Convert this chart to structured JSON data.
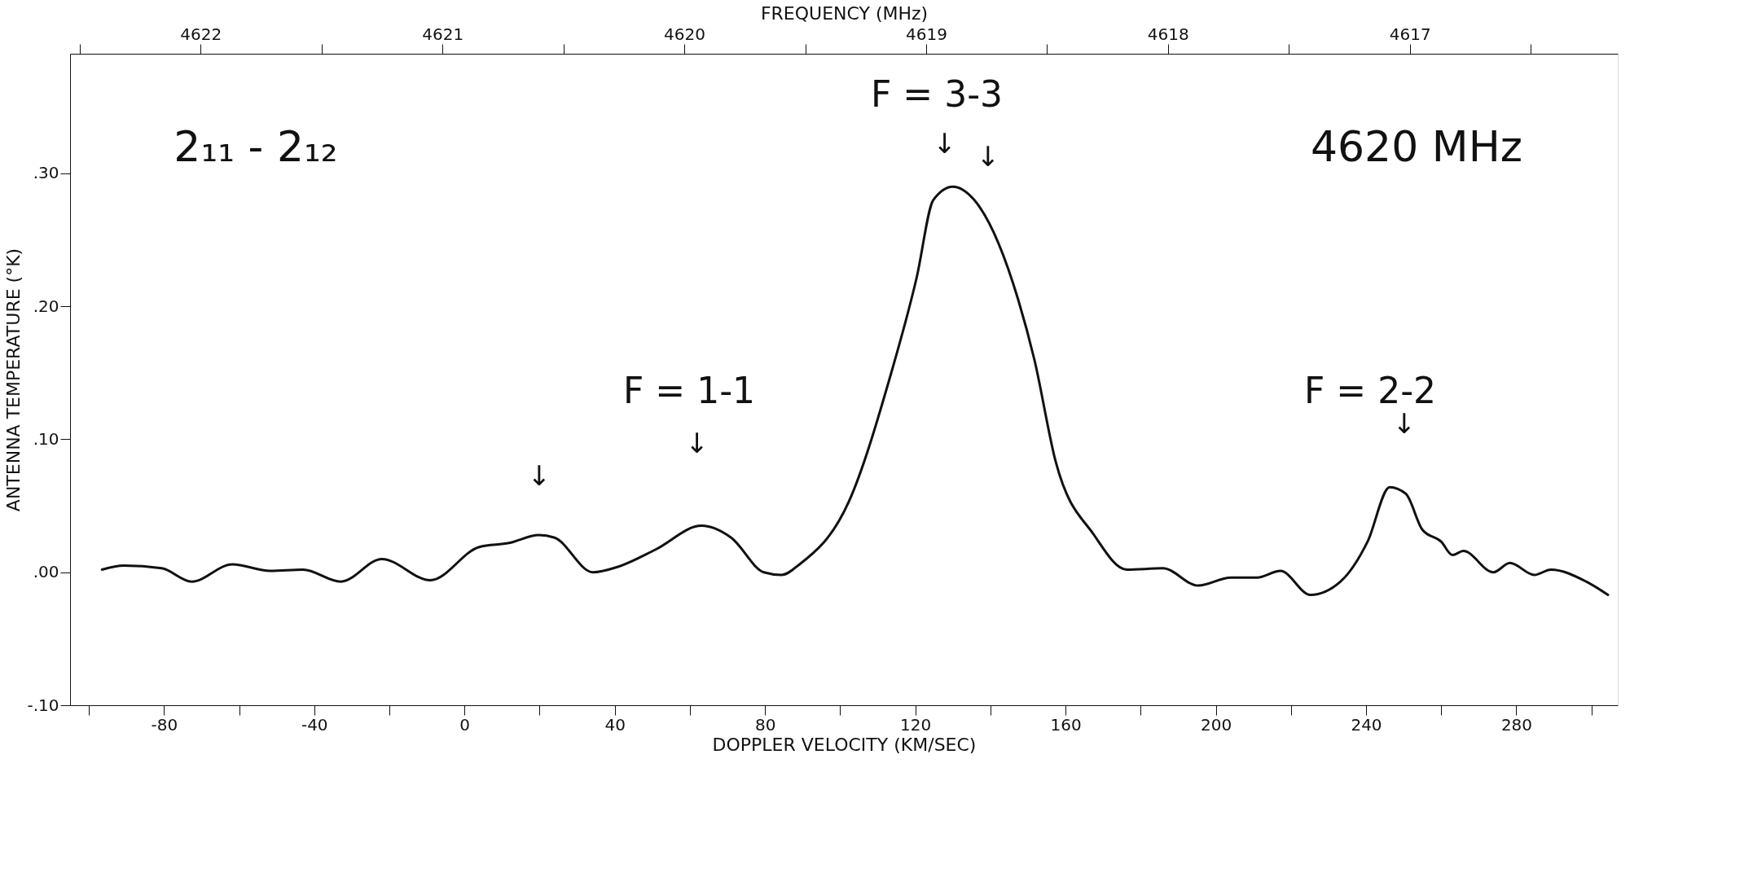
{
  "chart_data": {
    "type": "line",
    "xlabel": "DOPPLER VELOCITY (KM/SEC)",
    "ylabel": "ANTENNA TEMPERATURE (°K)",
    "x2label": "FREQUENCY (MHz)",
    "xlim": [
      -105,
      307
    ],
    "ylim": [
      -0.1,
      0.39
    ],
    "x2lim": [
      4622.54,
      4616.14
    ],
    "xticks": [
      {
        "value": -100,
        "label": null
      },
      -80,
      {
        "value": -60,
        "label": null
      },
      -40,
      {
        "value": -20,
        "label": null
      },
      0,
      {
        "value": 20,
        "label": null
      },
      40,
      {
        "value": 60,
        "label": null
      },
      80,
      {
        "value": 100,
        "label": null
      },
      120,
      {
        "value": 140,
        "label": null
      },
      160,
      {
        "value": 180,
        "label": null
      },
      200,
      {
        "value": 220,
        "label": null
      },
      240,
      {
        "value": 260,
        "label": null
      },
      280,
      {
        "value": 300,
        "label": null
      }
    ],
    "yticks": [
      {
        "value": -0.1,
        "label": "-.10"
      },
      {
        "value": 0.0,
        "label": ".00"
      },
      {
        "value": 0.1,
        "label": ".10"
      },
      {
        "value": 0.2,
        "label": ".20"
      },
      {
        "value": 0.3,
        "label": ".30"
      }
    ],
    "x2ticks": [
      {
        "value": 4622.5,
        "label": null
      },
      4622,
      {
        "value": 4621.5,
        "label": null
      },
      4621,
      {
        "value": 4620.5,
        "label": null
      },
      4620,
      {
        "value": 4619.5,
        "label": null
      },
      4619,
      {
        "value": 4618.5,
        "label": null
      },
      4618,
      {
        "value": 4617.5,
        "label": null
      },
      4617,
      {
        "value": 4616.5,
        "label": null
      }
    ],
    "grid": false,
    "marker": "none",
    "line_style": "solid",
    "series": [
      {
        "color": "#111111",
        "x": [
          -96.5,
          -90.7,
          -80.6,
          -72.6,
          -61.8,
          -51.7,
          -43,
          -32.9,
          -22,
          -9.1,
          3.9,
          11.8,
          19.8,
          24,
          34.2,
          40.7,
          50.8,
          63.1,
          71,
          79.7,
          84.4,
          89.2,
          102.3,
          113.3,
          120.4,
          124.8,
          130,
          135.7,
          147.4,
          151.7,
          157.4,
          167.6,
          176.3,
          185.9,
          195.3,
          204,
          211,
          217.2,
          225.2,
          233.2,
          240.4,
          246.3,
          250.6,
          255,
          260,
          263,
          265.9,
          273.9,
          278.3,
          284.8,
          289.2,
          298.6,
          304.4
        ],
        "values": [
          0.002,
          0.005,
          0.003,
          -0.007,
          0.006,
          0.001,
          0.002,
          -0.007,
          0.01,
          -0.006,
          0.019,
          0.022,
          0.028,
          0.026,
          0.0,
          0.004,
          0.017,
          0.035,
          0.026,
          0.0,
          -0.002,
          0.006,
          0.053,
          0.147,
          0.222,
          0.28,
          0.29,
          0.28,
          0.205,
          0.16,
          0.083,
          0.028,
          0.002,
          0.003,
          -0.01,
          -0.004,
          -0.004,
          0.001,
          -0.017,
          -0.007,
          0.023,
          0.064,
          0.059,
          0.032,
          0.023,
          0.013,
          0.016,
          0.0,
          0.007,
          -0.002,
          0.002,
          -0.007,
          -0.017
        ]
      }
    ],
    "annotations": [
      "2₁₁ - 2₁₂",
      "4620 MHz",
      "F = 3-3",
      "F = 1-1",
      "F = 2-2",
      "↓",
      "↓",
      "↓",
      "↓",
      "↓"
    ]
  }
}
